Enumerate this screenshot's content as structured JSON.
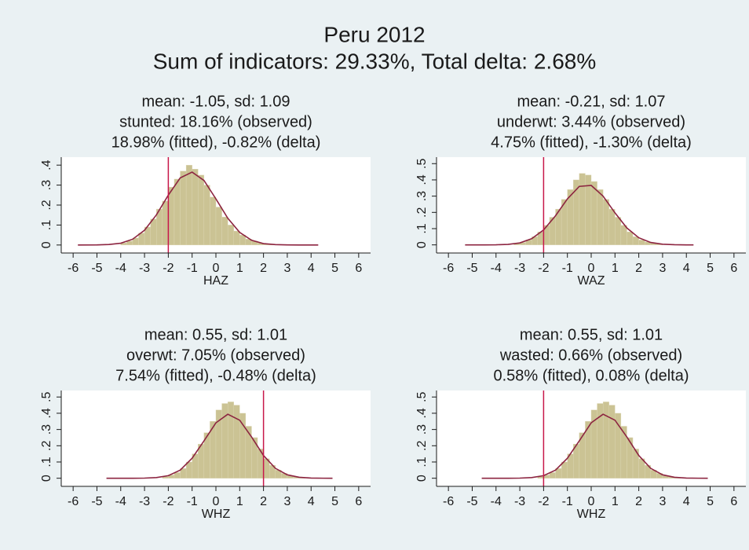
{
  "title": "Peru 2012",
  "subtitle": "Sum of indicators: 29.33%, Total delta: 2.68%",
  "chart_data": [
    {
      "type": "histogram",
      "title": [
        "mean: -1.05, sd: 1.09",
        "stunted: 18.16% (observed)",
        "18.98% (fitted), -0.82% (delta)"
      ],
      "xlabel": "HAZ",
      "bins": [
        -4,
        -3.75,
        -3.5,
        -3.25,
        -3,
        -2.75,
        -2.5,
        -2.25,
        -2,
        -1.75,
        -1.5,
        -1.25,
        -1,
        -0.75,
        -0.5,
        -0.25,
        0,
        0.25,
        0.5,
        0.75,
        1,
        1.25,
        1.5,
        1.75,
        2,
        2.25,
        2.5
      ],
      "values": [
        0.01,
        0.02,
        0.035,
        0.06,
        0.09,
        0.13,
        0.18,
        0.22,
        0.29,
        0.33,
        0.37,
        0.4,
        0.38,
        0.35,
        0.3,
        0.24,
        0.19,
        0.14,
        0.1,
        0.07,
        0.05,
        0.03,
        0.02,
        0.01,
        0.005,
        0.003
      ],
      "color": "#cbc394",
      "fit": {
        "x": [
          -5.8,
          -5,
          -4.5,
          -4,
          -3.5,
          -3,
          -2.5,
          -2,
          -1.5,
          -1,
          -0.5,
          0,
          0.5,
          1,
          1.5,
          2,
          2.5,
          3,
          3.5,
          4,
          4.3
        ],
        "values": [
          0,
          0.0005,
          0.0025,
          0.009,
          0.029,
          0.074,
          0.151,
          0.25,
          0.336,
          0.365,
          0.323,
          0.231,
          0.134,
          0.063,
          0.024,
          0.007,
          0.002,
          0.0004,
          0.0001,
          0,
          0
        ],
        "color": "#8c2440"
      },
      "cutoff": -2,
      "cutoff_color": "#c8174a",
      "xlim": [
        -6.5,
        6.5
      ],
      "xticks": [
        -6,
        -5,
        -4,
        -3,
        -2,
        -1,
        0,
        1,
        2,
        3,
        4,
        5,
        6
      ],
      "ylim": [
        -0.04,
        0.44
      ],
      "yticks": [
        0,
        {
          "value": 0.1,
          "label": ".1"
        },
        {
          "value": 0.2,
          "label": ".2"
        },
        {
          "value": 0.3,
          "label": ".3"
        },
        {
          "value": 0.4,
          "label": ".4"
        }
      ]
    },
    {
      "type": "histogram",
      "title": [
        "mean: -0.21, sd: 1.07",
        "underwt: 3.44% (observed)",
        "4.75% (fitted), -1.30% (delta)"
      ],
      "xlabel": "WAZ",
      "bins": [
        -3.25,
        -3,
        -2.75,
        -2.5,
        -2.25,
        -2,
        -1.75,
        -1.5,
        -1.25,
        -1,
        -0.75,
        -0.5,
        -0.25,
        0,
        0.25,
        0.5,
        0.75,
        1,
        1.25,
        1.5,
        1.75,
        2,
        2.25,
        2.5,
        2.75,
        3
      ],
      "values": [
        0.008,
        0.015,
        0.03,
        0.05,
        0.08,
        0.12,
        0.17,
        0.22,
        0.28,
        0.34,
        0.4,
        0.44,
        0.43,
        0.39,
        0.34,
        0.28,
        0.22,
        0.17,
        0.12,
        0.08,
        0.05,
        0.03,
        0.018,
        0.01,
        0.005
      ],
      "color": "#cbc394",
      "fit": {
        "x": [
          -5.3,
          -4.5,
          -4,
          -3.5,
          -3,
          -2.5,
          -2,
          -1.5,
          -1,
          -0.5,
          0,
          0.5,
          1,
          1.5,
          2,
          2.5,
          3,
          3.5,
          4,
          4.3
        ],
        "values": [
          0,
          0.0001,
          0.0007,
          0.003,
          0.012,
          0.038,
          0.092,
          0.179,
          0.283,
          0.36,
          0.366,
          0.3,
          0.197,
          0.104,
          0.044,
          0.015,
          0.004,
          0.001,
          0,
          0
        ],
        "color": "#8c2440"
      },
      "cutoff": -2,
      "cutoff_color": "#c8174a",
      "xlim": [
        -6.5,
        6.5
      ],
      "xticks": [
        -6,
        -5,
        -4,
        -3,
        -2,
        -1,
        0,
        1,
        2,
        3,
        4,
        5,
        6
      ],
      "ylim": [
        -0.05,
        0.54
      ],
      "yticks": [
        0,
        {
          "value": 0.1,
          "label": ".1"
        },
        {
          "value": 0.2,
          "label": ".2"
        },
        {
          "value": 0.3,
          "label": ".3"
        },
        {
          "value": 0.4,
          "label": ".4"
        },
        {
          "value": 0.5,
          "label": ".5"
        }
      ]
    },
    {
      "type": "histogram",
      "title": [
        "mean: 0.55, sd: 1.01",
        "overwt: 7.05% (observed)",
        "7.54% (fitted), -0.48% (delta)"
      ],
      "xlabel": "WHZ",
      "bins": [
        -2.25,
        -2,
        -1.75,
        -1.5,
        -1.25,
        -1,
        -0.75,
        -0.5,
        -0.25,
        0,
        0.25,
        0.5,
        0.75,
        1,
        1.25,
        1.5,
        1.75,
        2,
        2.25,
        2.5,
        2.75,
        3,
        3.25,
        3.5,
        3.75
      ],
      "values": [
        0.01,
        0.02,
        0.035,
        0.06,
        0.1,
        0.15,
        0.21,
        0.28,
        0.35,
        0.42,
        0.46,
        0.47,
        0.45,
        0.4,
        0.32,
        0.25,
        0.18,
        0.12,
        0.08,
        0.05,
        0.03,
        0.015,
        0.008,
        0.004
      ],
      "color": "#cbc394",
      "fit": {
        "x": [
          -4.6,
          -4,
          -3.5,
          -3,
          -2.5,
          -2,
          -1.5,
          -1,
          -0.5,
          0,
          0.5,
          1,
          1.5,
          2,
          2.5,
          3,
          3.5,
          4,
          4.5,
          4.9
        ],
        "values": [
          0,
          0,
          0.0001,
          0.0008,
          0.004,
          0.016,
          0.05,
          0.123,
          0.23,
          0.341,
          0.394,
          0.357,
          0.254,
          0.14,
          0.061,
          0.021,
          0.006,
          0.001,
          0.0002,
          0
        ],
        "color": "#8c2440"
      },
      "cutoff": 2,
      "cutoff_color": "#c8174a",
      "xlim": [
        -6.5,
        6.5
      ],
      "xticks": [
        -6,
        -5,
        -4,
        -3,
        -2,
        -1,
        0,
        1,
        2,
        3,
        4,
        5,
        6
      ],
      "ylim": [
        -0.05,
        0.54
      ],
      "yticks": [
        0,
        {
          "value": 0.1,
          "label": ".1"
        },
        {
          "value": 0.2,
          "label": ".2"
        },
        {
          "value": 0.3,
          "label": ".3"
        },
        {
          "value": 0.4,
          "label": ".4"
        },
        {
          "value": 0.5,
          "label": ".5"
        }
      ]
    },
    {
      "type": "histogram",
      "title": [
        "mean: 0.55, sd: 1.01",
        "wasted: 0.66% (observed)",
        "0.58% (fitted), 0.08% (delta)"
      ],
      "xlabel": "WHZ",
      "bins": [
        -2.25,
        -2,
        -1.75,
        -1.5,
        -1.25,
        -1,
        -0.75,
        -0.5,
        -0.25,
        0,
        0.25,
        0.5,
        0.75,
        1,
        1.25,
        1.5,
        1.75,
        2,
        2.25,
        2.5,
        2.75,
        3,
        3.25,
        3.5,
        3.75
      ],
      "values": [
        0.01,
        0.02,
        0.035,
        0.06,
        0.1,
        0.15,
        0.21,
        0.28,
        0.35,
        0.42,
        0.46,
        0.47,
        0.45,
        0.4,
        0.32,
        0.25,
        0.18,
        0.12,
        0.08,
        0.05,
        0.03,
        0.015,
        0.008,
        0.004
      ],
      "color": "#cbc394",
      "fit": {
        "x": [
          -4.6,
          -4,
          -3.5,
          -3,
          -2.5,
          -2,
          -1.5,
          -1,
          -0.5,
          0,
          0.5,
          1,
          1.5,
          2,
          2.5,
          3,
          3.5,
          4,
          4.5,
          4.9
        ],
        "values": [
          0,
          0,
          0.0001,
          0.0008,
          0.004,
          0.016,
          0.05,
          0.123,
          0.23,
          0.341,
          0.394,
          0.357,
          0.254,
          0.14,
          0.061,
          0.021,
          0.006,
          0.001,
          0.0002,
          0
        ],
        "color": "#8c2440"
      },
      "cutoff": -2,
      "cutoff_color": "#c8174a",
      "xlim": [
        -6.5,
        6.5
      ],
      "xticks": [
        -6,
        -5,
        -4,
        -3,
        -2,
        -1,
        0,
        1,
        2,
        3,
        4,
        5,
        6
      ],
      "ylim": [
        -0.05,
        0.54
      ],
      "yticks": [
        0,
        {
          "value": 0.1,
          "label": ".1"
        },
        {
          "value": 0.2,
          "label": ".2"
        },
        {
          "value": 0.3,
          "label": ".3"
        },
        {
          "value": 0.4,
          "label": ".4"
        },
        {
          "value": 0.5,
          "label": ".5"
        }
      ]
    }
  ]
}
